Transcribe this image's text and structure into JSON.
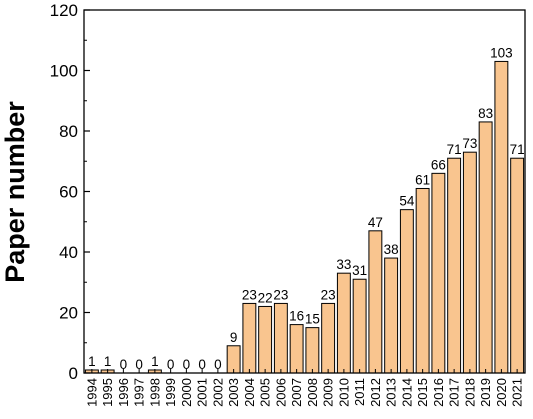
{
  "chart_data": {
    "type": "bar",
    "title": "",
    "xlabel": "",
    "ylabel": "Paper number",
    "ylim": [
      0,
      120
    ],
    "yticks": [
      0,
      20,
      40,
      60,
      80,
      100,
      120
    ],
    "grid": false,
    "bar_color": "#f9c58f",
    "bar_edge_color": "#000000",
    "categories": [
      "1994",
      "1995",
      "1996",
      "1997",
      "1998",
      "1999",
      "2000",
      "2001",
      "2002",
      "2003",
      "2004",
      "2005",
      "2006",
      "2007",
      "2008",
      "2009",
      "2010",
      "2011",
      "2012",
      "2013",
      "2014",
      "2015",
      "2016",
      "2017",
      "2018",
      "2019",
      "2020",
      "2021"
    ],
    "values": [
      1,
      1,
      0,
      0,
      1,
      0,
      0,
      0,
      0,
      9,
      23,
      22,
      23,
      16,
      15,
      23,
      33,
      31,
      47,
      38,
      54,
      61,
      66,
      71,
      73,
      83,
      103,
      71
    ]
  }
}
